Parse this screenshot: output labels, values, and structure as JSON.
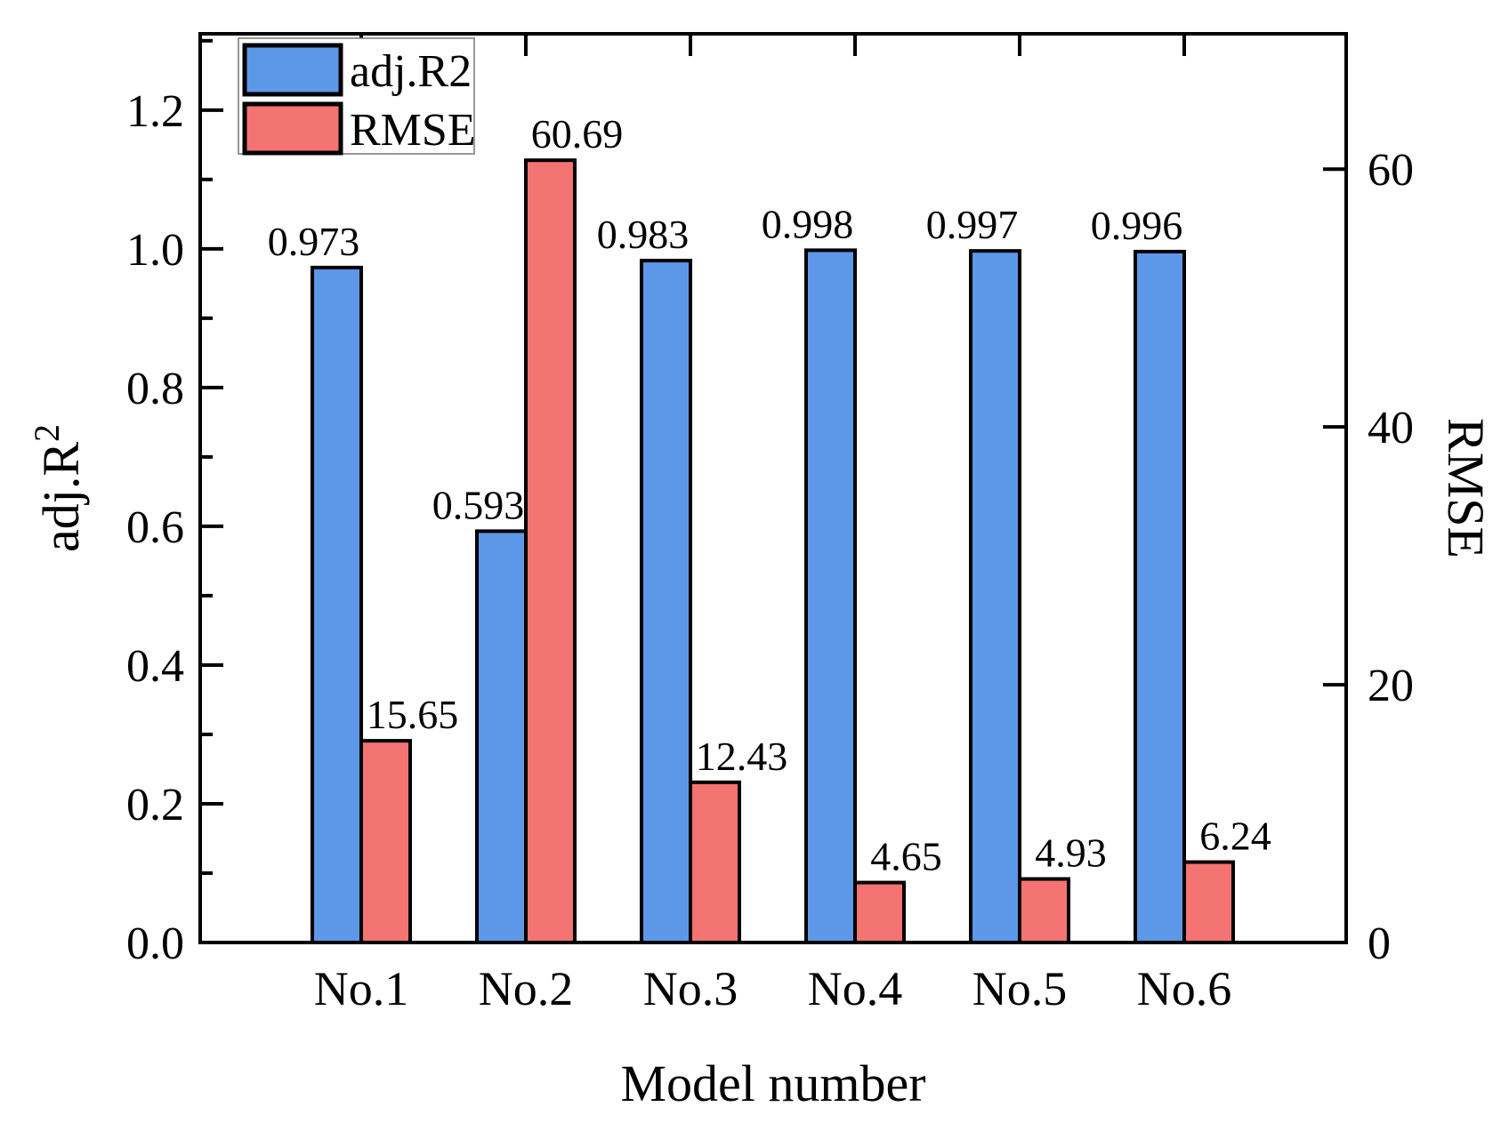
{
  "figure": {
    "background": "#ffffff",
    "frame_color": "#000000"
  },
  "chart_data": {
    "type": "bar",
    "categories": [
      "No.1",
      "No.2",
      "No.3",
      "No.4",
      "No.5",
      "No.6"
    ],
    "series": [
      {
        "name": "adj.R2",
        "axis": "left",
        "color": "#5D97E8",
        "values": [
          0.973,
          0.593,
          0.983,
          0.998,
          0.997,
          0.996
        ],
        "data_labels": [
          "0.973",
          "0.593",
          "0.983",
          "0.998",
          "0.997",
          "0.996"
        ]
      },
      {
        "name": "RMSE",
        "axis": "right",
        "color": "#F47373",
        "values": [
          15.65,
          60.69,
          12.43,
          4.65,
          4.93,
          6.24
        ],
        "data_labels": [
          "15.65",
          "60.69",
          "12.43",
          "4.65",
          "4.93",
          "6.24"
        ]
      }
    ],
    "xlabel": "Model number",
    "left_axis": {
      "label": "adj.R",
      "label_superscript": "2",
      "range": [
        0,
        1.31
      ],
      "major_ticks": [
        0.0,
        0.2,
        0.4,
        0.6,
        0.8,
        1.0,
        1.2
      ],
      "tick_labels": [
        "0.0",
        "0.2",
        "0.4",
        "0.6",
        "0.8",
        "1.0",
        "1.2"
      ],
      "minor_ticks": [
        0.1,
        0.3,
        0.5,
        0.7,
        0.9,
        1.1,
        1.3
      ]
    },
    "right_axis": {
      "label": "RMSE",
      "range": [
        0,
        70.5
      ],
      "major_ticks": [
        0,
        20,
        40,
        60
      ],
      "tick_labels": [
        "0",
        "20",
        "40",
        "60"
      ]
    },
    "legend": {
      "position": "top-left",
      "entries": [
        {
          "label": "adj.R2",
          "color": "#5D97E8"
        },
        {
          "label": "RMSE",
          "color": "#F47373"
        }
      ]
    },
    "grid": false,
    "bar_outline_color": "#000000"
  }
}
